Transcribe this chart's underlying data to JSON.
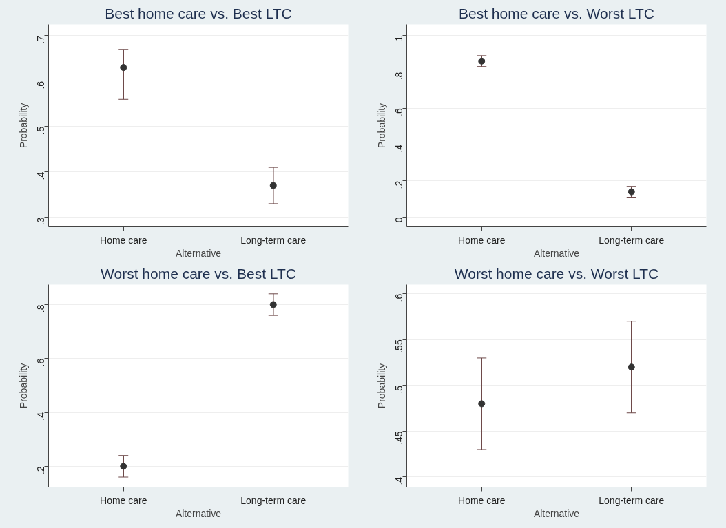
{
  "chart_data": [
    {
      "type": "scatter",
      "title": "Best home care vs. Best LTC",
      "xlabel": "Alternative",
      "ylabel": "Probability",
      "categories": [
        "Home care",
        "Long-term care"
      ],
      "series": [
        {
          "color": "#333333",
          "values": [
            0.63,
            0.37
          ],
          "errors": [
            [
              0.56,
              0.67
            ],
            [
              0.33,
              0.41
            ]
          ]
        }
      ],
      "ylim": [
        0.279,
        0.725
      ],
      "yticks": [
        {
          "value": 0.3,
          "label": ".3"
        },
        {
          "value": 0.4,
          "label": ".4"
        },
        {
          "value": 0.5,
          "label": ".5"
        },
        {
          "value": 0.6,
          "label": ".6"
        },
        {
          "value": 0.7,
          "label": ".7"
        }
      ],
      "grid": "y",
      "marker": "circle"
    },
    {
      "type": "scatter",
      "title": "Best home care vs. Worst LTC",
      "xlabel": "Alternative",
      "ylabel": "Probability",
      "categories": [
        "Home care",
        "Long-term care"
      ],
      "series": [
        {
          "color": "#333333",
          "values": [
            0.86,
            0.14
          ],
          "errors": [
            [
              0.83,
              0.89
            ],
            [
              0.11,
              0.17
            ]
          ]
        }
      ],
      "ylim": [
        -0.053,
        1.062
      ],
      "yticks": [
        0,
        {
          "value": 0.2,
          "label": ".2"
        },
        {
          "value": 0.4,
          "label": ".4"
        },
        {
          "value": 0.6,
          "label": ".6"
        },
        {
          "value": 0.8,
          "label": ".8"
        },
        1
      ],
      "grid": "y",
      "marker": "circle"
    },
    {
      "type": "scatter",
      "title": "Worst home care vs. Best LTC",
      "xlabel": "Alternative",
      "ylabel": "Probability",
      "categories": [
        "Home care",
        "Long-term care"
      ],
      "series": [
        {
          "color": "#333333",
          "values": [
            0.2,
            0.8
          ],
          "errors": [
            [
              0.16,
              0.24
            ],
            [
              0.76,
              0.84
            ]
          ]
        }
      ],
      "ylim": [
        0.123,
        0.874
      ],
      "yticks": [
        {
          "value": 0.2,
          "label": ".2"
        },
        {
          "value": 0.4,
          "label": ".4"
        },
        {
          "value": 0.6,
          "label": ".6"
        },
        {
          "value": 0.8,
          "label": ".8"
        }
      ],
      "grid": "y",
      "marker": "circle"
    },
    {
      "type": "scatter",
      "title": "Worst home care vs. Worst LTC",
      "xlabel": "Alternative",
      "ylabel": "Probability",
      "categories": [
        "Home care",
        "Long-term care"
      ],
      "series": [
        {
          "color": "#333333",
          "values": [
            0.48,
            0.52
          ],
          "errors": [
            [
              0.43,
              0.53
            ],
            [
              0.47,
              0.57
            ]
          ]
        }
      ],
      "ylim": [
        0.389,
        0.61
      ],
      "yticks": [
        {
          "value": 0.4,
          "label": ".4"
        },
        {
          "value": 0.45,
          "label": ".45"
        },
        {
          "value": 0.5,
          "label": ".5"
        },
        {
          "value": 0.55,
          "label": ".55"
        },
        {
          "value": 0.6,
          "label": ".6"
        }
      ],
      "grid": "y",
      "marker": "circle"
    }
  ]
}
